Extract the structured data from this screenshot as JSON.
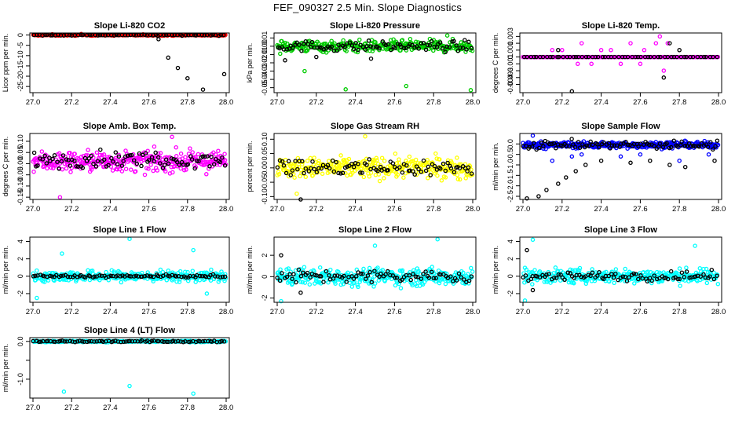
{
  "page": {
    "title": "FEF_090327  2.5 Min. Slope Diagnostics"
  },
  "chart_data": [
    {
      "type": "scatter",
      "title": "Slope Li-820 CO2",
      "ylabel": "Licor ppm per min.",
      "color": "#ff0000",
      "xlim": [
        27.0,
        28.0
      ],
      "ylim": [
        -28,
        1
      ],
      "x_ticks": [
        "27.0",
        "27.2",
        "27.4",
        "27.6",
        "27.8",
        "28.0"
      ],
      "y_ticks": [
        0,
        -5,
        -10,
        -15,
        -20,
        -25
      ],
      "y_tick_labels": [
        "0",
        "-5",
        "-10",
        "-15",
        "-20",
        "-25"
      ],
      "series_colored": {
        "center": 0,
        "spread": 0.3,
        "n": 240,
        "outliers": [
          [
            27.1,
            0.4
          ],
          [
            27.25,
            0.5
          ],
          [
            27.57,
            0.3
          ]
        ]
      },
      "series_black": {
        "center": 0,
        "spread": 0.3,
        "n": 70,
        "outliers": [
          [
            27.65,
            -2
          ],
          [
            27.7,
            -11
          ],
          [
            27.75,
            -16
          ],
          [
            27.8,
            -21
          ],
          [
            27.88,
            -26.5
          ],
          [
            27.99,
            -19
          ]
        ]
      }
    },
    {
      "type": "scatter",
      "title": "Slope Li-820 Pressure",
      "ylabel": "kPa per min.",
      "color": "#00cc00",
      "xlim": [
        27.0,
        28.0
      ],
      "ylim": [
        -0.056,
        0.016
      ],
      "x_ticks": [
        "27.0",
        "27.2",
        "27.4",
        "27.6",
        "27.8",
        "28.0"
      ],
      "y_ticks": [
        0.01,
        0,
        -0.01,
        -0.02,
        -0.03,
        -0.04,
        -0.05
      ],
      "y_tick_labels": [
        "0.01",
        "0.00",
        "-0.01",
        "-0.02",
        "-0.03",
        "-0.04",
        "-0.05"
      ],
      "series_colored": {
        "center": 0,
        "spread": 0.007,
        "n": 300,
        "outliers": [
          [
            27.35,
            -0.052
          ],
          [
            27.66,
            -0.048
          ],
          [
            27.99,
            -0.053
          ],
          [
            27.87,
            0.013
          ],
          [
            27.14,
            -0.03
          ]
        ]
      },
      "series_black": {
        "center": 0,
        "spread": 0.006,
        "n": 90,
        "outliers": [
          [
            27.04,
            -0.017
          ],
          [
            27.2,
            -0.013
          ],
          [
            27.48,
            -0.015
          ]
        ]
      }
    },
    {
      "type": "scatter",
      "title": "Slope Li-820 Temp.",
      "ylabel": "degrees C per min.",
      "color": "#ff00ff",
      "xlim": [
        27.0,
        28.0
      ],
      "ylim": [
        -0.0052,
        0.0035
      ],
      "x_ticks": [
        "27.0",
        "27.2",
        "27.4",
        "27.6",
        "27.8",
        "28.0"
      ],
      "y_ticks": [
        0.003,
        0.002,
        0.001,
        0,
        -0.001,
        -0.002,
        -0.003,
        -0.004
      ],
      "y_tick_labels": [
        "0.003",
        "",
        "0.001",
        "",
        "-0.001",
        "",
        "-0.003",
        "-0.004"
      ],
      "series_colored": {
        "center": 0,
        "spread": 0,
        "n": 200,
        "outliers": [
          [
            27.15,
            0.001
          ],
          [
            27.3,
            0.002
          ],
          [
            27.4,
            0.001
          ],
          [
            27.5,
            -0.001
          ],
          [
            27.55,
            0.002
          ],
          [
            27.62,
            0.001
          ],
          [
            27.7,
            0.003
          ],
          [
            27.72,
            -0.002
          ],
          [
            27.74,
            0.002
          ],
          [
            27.28,
            -0.001
          ],
          [
            27.45,
            0.001
          ],
          [
            27.6,
            -0.001
          ],
          [
            27.2,
            0.001
          ],
          [
            27.35,
            -0.001
          ],
          [
            27.68,
            0.002
          ]
        ]
      },
      "series_black": {
        "center": 0,
        "spread": 0,
        "n": 60,
        "outliers": [
          [
            27.25,
            -0.005
          ],
          [
            27.72,
            -0.003
          ],
          [
            27.75,
            0.002
          ],
          [
            27.8,
            0.001
          ],
          [
            27.18,
            0.001
          ]
        ]
      }
    },
    {
      "type": "scatter",
      "title": "Slope Amb. Box Temp.",
      "ylabel": "degrees C per min.",
      "color": "#ff00ff",
      "xlim": [
        27.0,
        28.0
      ],
      "ylim": [
        -0.16,
        0.135
      ],
      "x_ticks": [
        "27.0",
        "27.2",
        "27.4",
        "27.6",
        "27.8",
        "28.0"
      ],
      "y_ticks": [
        0.1,
        0.05,
        0,
        -0.05,
        -0.1,
        -0.15
      ],
      "y_tick_labels": [
        "0.10",
        "0.05",
        "0.00",
        "-0.05",
        "-0.10",
        "-0.15"
      ],
      "series_colored": {
        "center": 0.01,
        "spread": 0.045,
        "n": 330,
        "outliers": [
          [
            27.72,
            0.12
          ],
          [
            27.14,
            -0.15
          ]
        ]
      },
      "series_black": {
        "center": 0.02,
        "spread": 0.035,
        "n": 90,
        "outliers": []
      }
    },
    {
      "type": "scatter",
      "title": "Slope Gas Stream RH",
      "ylabel": "percent per min.",
      "color": "#ffff00",
      "xlim": [
        27.0,
        28.0
      ],
      "ylim": [
        -0.11,
        0.12
      ],
      "x_ticks": [
        "27.0",
        "27.2",
        "27.4",
        "27.6",
        "27.8",
        "28.0"
      ],
      "y_ticks": [
        0.1,
        0.05,
        0,
        -0.05,
        -0.1
      ],
      "y_tick_labels": [
        "0.10",
        "0.05",
        "0.00",
        "-0.05",
        "-0.10"
      ],
      "series_colored": {
        "center": 0,
        "spread": 0.035,
        "n": 330,
        "outliers": [
          [
            27.1,
            -0.09
          ],
          [
            27.45,
            0.11
          ]
        ]
      },
      "series_black": {
        "center": 0,
        "spread": 0.03,
        "n": 90,
        "outliers": [
          [
            27.12,
            -0.11
          ]
        ]
      }
    },
    {
      "type": "scatter",
      "title": "Slope Sample Flow",
      "ylabel": "ml/min per min.",
      "color": "#0000ff",
      "xlim": [
        27.0,
        28.0
      ],
      "ylim": [
        -2.65,
        0.5
      ],
      "x_ticks": [
        "27.0",
        "27.2",
        "27.4",
        "27.6",
        "27.8",
        "28.0"
      ],
      "y_ticks": [
        0,
        -0.5,
        -1,
        -1.5,
        -2,
        -2.5
      ],
      "y_tick_labels": [
        "0.0",
        "-0.5",
        "-1.0",
        "-1.5",
        "-2.0",
        "-2.5"
      ],
      "series_colored": {
        "center": -0.05,
        "spread": 0.15,
        "n": 330,
        "outliers": [
          [
            27.15,
            -0.8
          ],
          [
            27.25,
            -0.6
          ],
          [
            27.3,
            -0.5
          ],
          [
            27.5,
            -0.6
          ],
          [
            27.6,
            -0.5
          ],
          [
            27.8,
            -0.8
          ],
          [
            27.95,
            -0.5
          ],
          [
            27.05,
            0.4
          ]
        ]
      },
      "series_black": {
        "center": -0.05,
        "spread": 0.2,
        "n": 90,
        "outliers": [
          [
            27.02,
            -2.6
          ],
          [
            27.08,
            -2.5
          ],
          [
            27.12,
            -2.2
          ],
          [
            27.18,
            -1.9
          ],
          [
            27.22,
            -1.6
          ],
          [
            27.27,
            -1.3
          ],
          [
            27.32,
            -1.0
          ],
          [
            27.4,
            -0.8
          ],
          [
            27.55,
            -0.9
          ],
          [
            27.65,
            -0.8
          ],
          [
            27.75,
            -1.0
          ],
          [
            27.83,
            -1.1
          ],
          [
            27.98,
            -0.8
          ]
        ]
      }
    },
    {
      "type": "scatter",
      "title": "Slope Line 1 Flow",
      "ylabel": "ml/min per min.",
      "color": "#00ffff",
      "xlim": [
        27.0,
        28.0
      ],
      "ylim": [
        -3.0,
        4.5
      ],
      "x_ticks": [
        "27.0",
        "27.2",
        "27.4",
        "27.6",
        "27.8",
        "28.0"
      ],
      "y_ticks": [
        4,
        2,
        0,
        -2
      ],
      "y_tick_labels": [
        "4",
        "2",
        "0",
        "-2"
      ],
      "series_colored": {
        "center": 0,
        "spread": 0.6,
        "n": 320,
        "outliers": [
          [
            27.5,
            4.3
          ],
          [
            27.83,
            3.0
          ],
          [
            27.02,
            -2.5
          ],
          [
            27.15,
            2.6
          ],
          [
            27.9,
            -2.0
          ]
        ]
      },
      "series_black": {
        "center": 0,
        "spread": 0.15,
        "n": 85,
        "outliers": []
      }
    },
    {
      "type": "scatter",
      "title": "Slope Line 2 Flow",
      "ylabel": "ml/min per min.",
      "color": "#00ffff",
      "xlim": [
        27.0,
        28.0
      ],
      "ylim": [
        -2.4,
        3.7
      ],
      "x_ticks": [
        "27.0",
        "27.2",
        "27.4",
        "27.6",
        "27.8",
        "28.0"
      ],
      "y_ticks": [
        2,
        0,
        -2
      ],
      "y_tick_labels": [
        "2",
        "0",
        "-2"
      ],
      "series_colored": {
        "center": 0,
        "spread": 0.8,
        "n": 320,
        "outliers": [
          [
            27.82,
            3.5
          ],
          [
            27.5,
            2.9
          ],
          [
            27.02,
            -2.3
          ]
        ]
      },
      "series_black": {
        "center": 0,
        "spread": 0.6,
        "n": 85,
        "outliers": [
          [
            27.02,
            2.0
          ],
          [
            27.12,
            -1.5
          ]
        ]
      }
    },
    {
      "type": "scatter",
      "title": "Slope Line 3 Flow",
      "ylabel": "ml/min per min.",
      "color": "#00ffff",
      "xlim": [
        27.0,
        28.0
      ],
      "ylim": [
        -3.0,
        4.5
      ],
      "x_ticks": [
        "27.0",
        "27.2",
        "27.4",
        "27.6",
        "27.8",
        "28.0"
      ],
      "y_ticks": [
        4,
        2,
        0,
        -2
      ],
      "y_tick_labels": [
        "4",
        "2",
        "0",
        "-2"
      ],
      "series_colored": {
        "center": 0,
        "spread": 0.8,
        "n": 320,
        "outliers": [
          [
            27.05,
            4.2
          ],
          [
            27.88,
            3.5
          ],
          [
            27.01,
            -2.8
          ]
        ]
      },
      "series_black": {
        "center": 0,
        "spread": 0.5,
        "n": 85,
        "outliers": [
          [
            27.02,
            3.0
          ],
          [
            27.05,
            -1.6
          ]
        ]
      }
    },
    {
      "type": "scatter",
      "title": "Slope Line 4 (LT) Flow",
      "ylabel": "ml/min per min.",
      "color": "#00ffff",
      "xlim": [
        27.0,
        28.0
      ],
      "ylim": [
        -1.5,
        0.1
      ],
      "x_ticks": [
        "27.0",
        "27.2",
        "27.4",
        "27.6",
        "27.8",
        "28.0"
      ],
      "y_ticks": [
        0,
        -0.5,
        -1
      ],
      "y_tick_labels": [
        "0.0",
        "",
        "-1.0"
      ],
      "series_colored": {
        "center": 0,
        "spread": 0.02,
        "n": 260,
        "outliers": [
          [
            27.16,
            -1.33
          ],
          [
            27.5,
            -1.18
          ],
          [
            27.83,
            -1.38
          ]
        ]
      },
      "series_black": {
        "center": 0,
        "spread": 0.02,
        "n": 80,
        "outliers": []
      }
    }
  ]
}
